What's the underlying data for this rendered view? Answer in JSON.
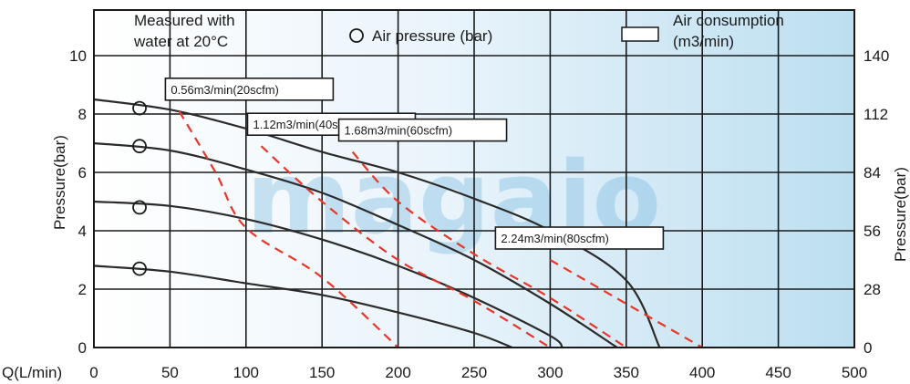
{
  "chart_data": {
    "type": "line",
    "legend": {
      "note_line1": "Measured with",
      "note_line2": "water at 20°C",
      "pressure_marker_label": "Air pressure (bar)",
      "consumption_marker_label_line1": "Air consumption",
      "consumption_marker_label_line2": "(m3/min)"
    },
    "xaxis": {
      "label": "Q(L/min)",
      "range": [
        0,
        500
      ],
      "ticks": [
        0,
        50,
        100,
        150,
        200,
        250,
        300,
        350,
        400,
        450,
        500
      ]
    },
    "yaxis_left": {
      "label": "Pressure(bar)",
      "range": [
        0,
        10.5
      ],
      "ticks": [
        0,
        2,
        4,
        6,
        8,
        10
      ]
    },
    "yaxis_right": {
      "label": "Pressure(bar)",
      "ticks": [
        0,
        28,
        56,
        84,
        112,
        140
      ]
    },
    "grid": true,
    "watermark": "magaio",
    "air_pressure_markers": [
      {
        "x": 30,
        "y": 8.2
      },
      {
        "x": 30,
        "y": 6.9
      },
      {
        "x": 30,
        "y": 4.8
      },
      {
        "x": 30,
        "y": 2.7
      }
    ],
    "series": [
      {
        "kind": "pressure",
        "points": [
          [
            0,
            8.5
          ],
          [
            50,
            8.15
          ],
          [
            100,
            7.5
          ],
          [
            150,
            6.7
          ],
          [
            200,
            6.0
          ],
          [
            250,
            5.1
          ],
          [
            300,
            4.0
          ],
          [
            350,
            2.3
          ],
          [
            372,
            0.0
          ]
        ]
      },
      {
        "kind": "pressure",
        "points": [
          [
            0,
            7.0
          ],
          [
            50,
            6.75
          ],
          [
            100,
            6.1
          ],
          [
            150,
            5.3
          ],
          [
            200,
            4.2
          ],
          [
            250,
            3.0
          ],
          [
            300,
            1.5
          ],
          [
            344,
            0.0
          ]
        ]
      },
      {
        "kind": "pressure",
        "points": [
          [
            0,
            5.0
          ],
          [
            50,
            4.85
          ],
          [
            100,
            4.4
          ],
          [
            150,
            3.7
          ],
          [
            200,
            2.8
          ],
          [
            250,
            1.7
          ],
          [
            300,
            0.4
          ],
          [
            308,
            0.0
          ]
        ]
      },
      {
        "kind": "pressure",
        "points": [
          [
            0,
            2.8
          ],
          [
            50,
            2.6
          ],
          [
            100,
            2.2
          ],
          [
            150,
            1.8
          ],
          [
            200,
            1.2
          ],
          [
            250,
            0.5
          ],
          [
            275,
            0.0
          ]
        ]
      },
      {
        "kind": "consumption",
        "label": "0.56m3/min(20scfm)",
        "points": [
          [
            56,
            8.1
          ],
          [
            80,
            6.0
          ],
          [
            100,
            4.1
          ],
          [
            150,
            2.4
          ],
          [
            200,
            0.0
          ]
        ]
      },
      {
        "kind": "consumption",
        "label": "1.12m3/min(40scfm)",
        "points": [
          [
            110,
            6.9
          ],
          [
            150,
            5.0
          ],
          [
            200,
            3.0
          ],
          [
            250,
            1.6
          ],
          [
            300,
            0.0
          ]
        ]
      },
      {
        "kind": "consumption",
        "label": "1.68m3/min(60scfm)",
        "points": [
          [
            170,
            6.7
          ],
          [
            200,
            5.0
          ],
          [
            250,
            3.2
          ],
          [
            300,
            1.7
          ],
          [
            350,
            0.0
          ]
        ]
      },
      {
        "kind": "consumption",
        "label": "2.24m3/min(80scfm)",
        "points": [
          [
            300,
            3.0
          ],
          [
            350,
            1.5
          ],
          [
            400,
            0.0
          ]
        ]
      }
    ],
    "colors": {
      "pressure_line": "#2b2b2b",
      "consumption_line": "#e8362a",
      "grid": "#1a1a1a",
      "background_left": "#ffffff",
      "background_right": "#cfe6f4"
    }
  }
}
